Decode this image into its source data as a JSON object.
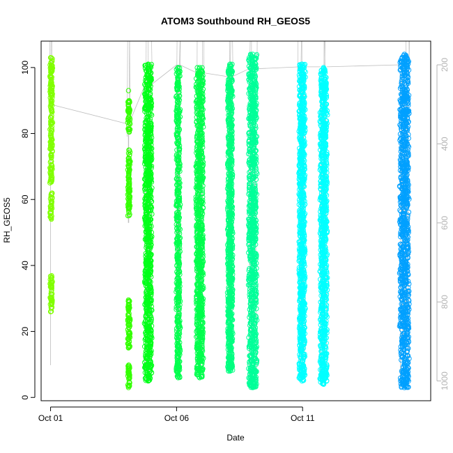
{
  "chart_data": {
    "type": "scatter",
    "title": "ATOM3 Southbound RH_GEOS5",
    "xlabel": "Date",
    "ylabel": "RH_GEOS5",
    "x_axis": {
      "type": "date",
      "lim": [
        "2017-09-30T15:00",
        "2017-10-16T02:00"
      ],
      "ticks": [
        {
          "value": "2017-10-01T00:00",
          "label": "Oct 01"
        },
        {
          "value": "2017-10-06T00:00",
          "label": "Oct 06"
        },
        {
          "value": "2017-10-11T00:00",
          "label": "Oct 11"
        }
      ]
    },
    "y_axis": {
      "lim": [
        -1,
        108
      ],
      "ticks": [
        0,
        20,
        40,
        60,
        80,
        100
      ]
    },
    "y2_axis": {
      "quantity": "pressure",
      "reversed": true,
      "lim": [
        1050,
        140
      ],
      "ticks": [
        200,
        400,
        600,
        800,
        1000
      ],
      "color": "#b3b3b3"
    },
    "marker": "open-circle",
    "grid": false,
    "legend": "none",
    "series": [
      {
        "x_start": "2017-10-01T00:00",
        "x_end": "2017-10-01T00:00",
        "y_min": 26,
        "y_max": 103,
        "color": "#80FF00",
        "dense": [
          [
            26,
            37
          ],
          [
            54,
            62
          ],
          [
            65,
            103
          ]
        ],
        "path_p": [
          960,
          300
        ]
      },
      {
        "x_start": "2017-10-04T02:00",
        "x_end": "2017-10-04T02:30",
        "y_min": 3,
        "y_max": 93,
        "color": "#33FF00",
        "dense": [
          [
            3,
            10
          ],
          [
            15,
            30
          ],
          [
            55,
            75
          ],
          [
            80,
            90
          ]
        ],
        "path_p": [
          600,
          350
        ]
      },
      {
        "x_start": "2017-10-04T18:00",
        "x_end": "2017-10-05T00:00",
        "y_min": 5,
        "y_max": 101,
        "color": "#00FF19",
        "dense": [
          [
            5,
            101
          ]
        ],
        "path_p": [
          980,
          250
        ]
      },
      {
        "x_start": "2017-10-06T00:00",
        "x_end": "2017-10-06T03:00",
        "y_min": 6,
        "y_max": 100,
        "color": "#00FF4D",
        "dense": [
          [
            6,
            100
          ]
        ],
        "path_p": [
          990,
          200
        ]
      },
      {
        "x_start": "2017-10-06T19:00",
        "x_end": "2017-10-07T01:00",
        "y_min": 6,
        "y_max": 100,
        "color": "#00FF4D",
        "dense": [
          [
            6,
            100
          ]
        ],
        "path_p": [
          985,
          220
        ]
      },
      {
        "x_start": "2017-10-08T01:00",
        "x_end": "2017-10-08T05:00",
        "y_min": 8,
        "y_max": 101,
        "color": "#00FF80",
        "dense": [
          [
            8,
            101
          ]
        ],
        "path_p": [
          950,
          230
        ]
      },
      {
        "x_start": "2017-10-08T21:00",
        "x_end": "2017-10-09T04:00",
        "y_min": 3,
        "y_max": 104,
        "color": "#00FF99",
        "dense": [
          [
            3,
            104
          ]
        ],
        "path_p": [
          1000,
          210
        ]
      },
      {
        "x_start": "2017-10-10T21:00",
        "x_end": "2017-10-11T02:00",
        "y_min": 5,
        "y_max": 101,
        "color": "#00FFFF",
        "dense": [
          [
            5,
            101
          ]
        ],
        "path_p": [
          990,
          205
        ]
      },
      {
        "x_start": "2017-10-11T17:00",
        "x_end": "2017-10-11T23:00",
        "y_min": 4,
        "y_max": 100,
        "color": "#00FFFF",
        "dense": [
          [
            4,
            100
          ]
        ],
        "path_p": [
          995,
          205
        ]
      },
      {
        "x_start": "2017-10-14T21:00",
        "x_end": "2017-10-15T05:00",
        "y_min": 3,
        "y_max": 104,
        "color": "#00A0FF",
        "dense": [
          [
            3,
            104
          ]
        ],
        "path_p": [
          1000,
          200
        ]
      }
    ]
  }
}
